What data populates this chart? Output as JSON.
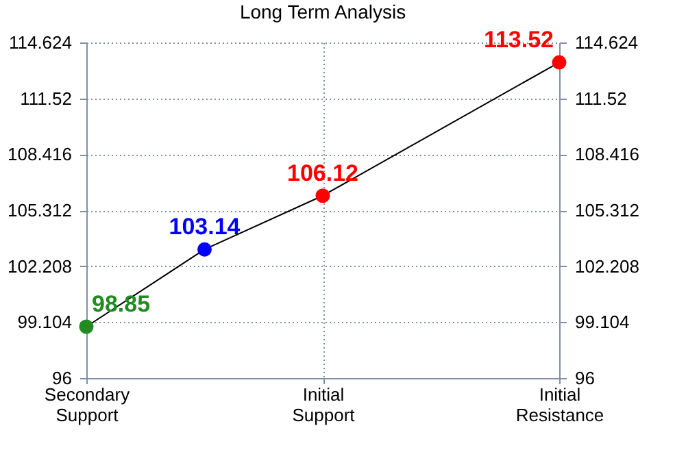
{
  "chart_data": {
    "type": "line",
    "title": "Long Term Analysis",
    "categories": [
      "Secondary Support",
      null,
      "Initial Support",
      null,
      "Initial Resistance"
    ],
    "series": [
      {
        "color": "#000000",
        "colors": [
          "#228b22",
          "#0000ff",
          "#ff0000",
          null,
          "#ff0000"
        ],
        "values": [
          98.85,
          103.14,
          106.12,
          null,
          113.52
        ]
      }
    ],
    "ylim": [
      96,
      114.624
    ],
    "yticks": [
      96,
      99.104,
      102.208,
      105.312,
      108.416,
      111.52,
      114.624
    ],
    "y2lim": [
      96,
      114.624
    ],
    "y2ticks": [
      96,
      99.104,
      102.208,
      105.312,
      108.416,
      111.52,
      114.624
    ],
    "grid": true,
    "marker": "circle",
    "line_style": "solid",
    "data_labels": true
  }
}
